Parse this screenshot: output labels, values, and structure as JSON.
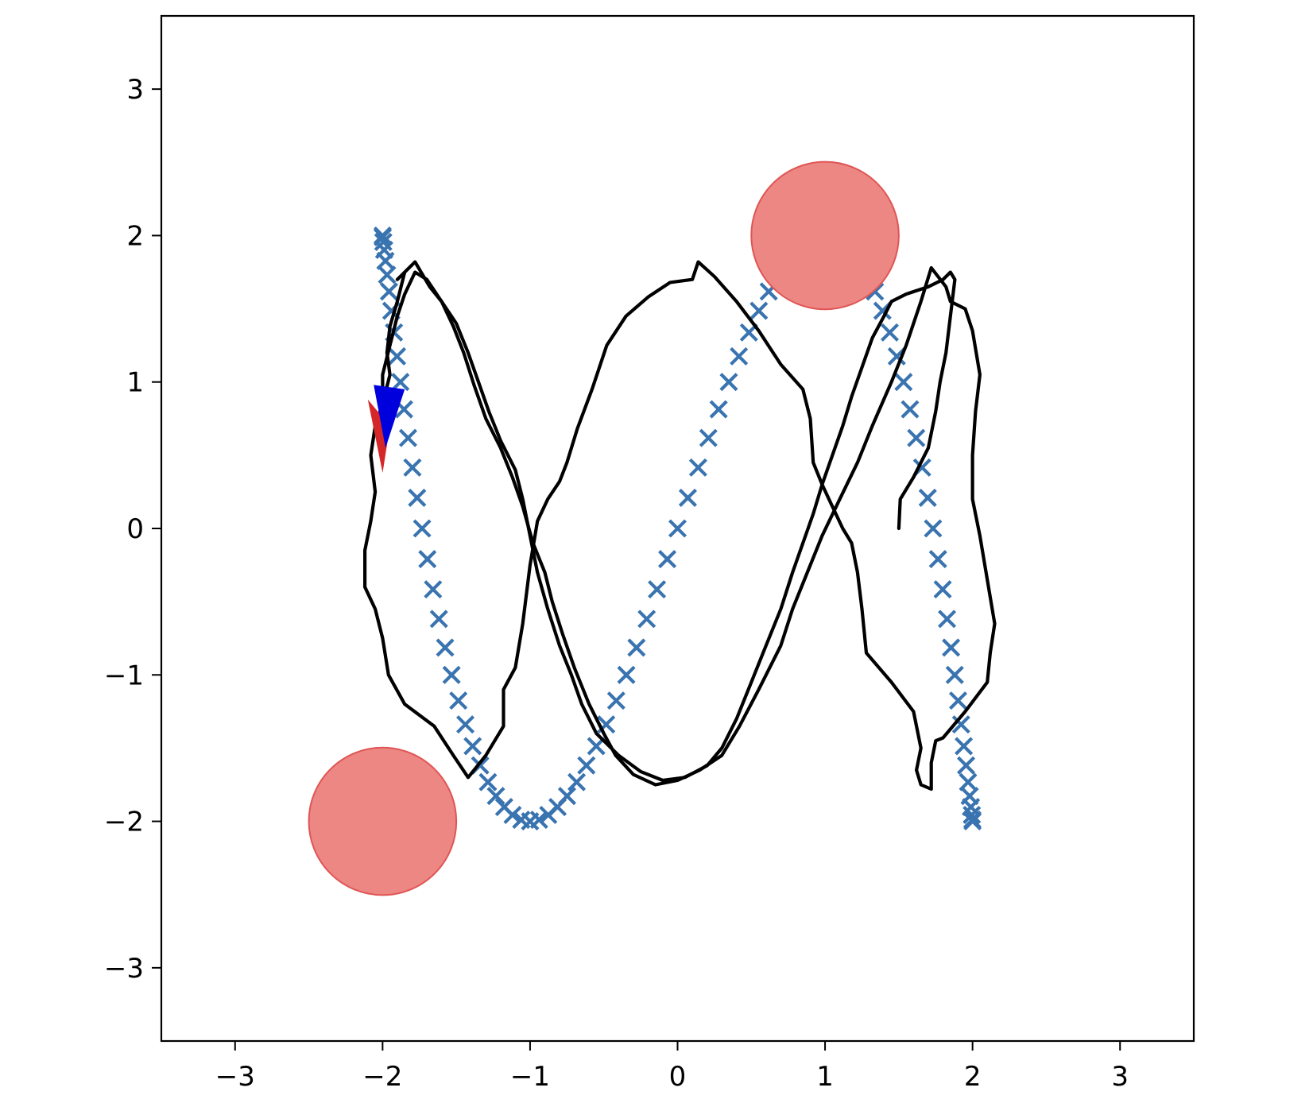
{
  "chart_data": {
    "type": "scatter",
    "title": "",
    "xlabel": "",
    "ylabel": "",
    "xlim": [
      -3.5,
      3.5
    ],
    "ylim": [
      -3.5,
      3.5
    ],
    "grid": false,
    "x_ticks": [
      -3,
      -2,
      -1,
      0,
      1,
      2,
      3
    ],
    "y_ticks": [
      -3,
      -2,
      -1,
      0,
      1,
      2,
      3
    ],
    "x_tick_labels": [
      "−3",
      "−2",
      "−1",
      "0",
      "1",
      "2",
      "3"
    ],
    "y_tick_labels": [
      "−3",
      "−2",
      "−1",
      "0",
      "1",
      "2",
      "3"
    ],
    "colors": {
      "reference": "#3a74b0",
      "trajectory": "#000000",
      "obstacle_fill": "#ec8783",
      "obstacle_edge": "#e05555",
      "agent_red": "#d62728",
      "agent_blue": "#0000dd"
    },
    "series": [
      {
        "kind": "reference_markers",
        "marker": "x",
        "description_of_shape": "lissajous",
        "points_param": {
          "count": 180,
          "x_amp": 2.0,
          "y_amp": 2.0,
          "x_freq": 1,
          "y_freq": 3
        }
      },
      {
        "kind": "trajectory",
        "points": [
          [
            1.5,
            0.0
          ],
          [
            1.51,
            0.2
          ],
          [
            1.6,
            0.35
          ],
          [
            1.7,
            0.55
          ],
          [
            1.75,
            0.8
          ],
          [
            1.78,
            1.0
          ],
          [
            1.82,
            1.2
          ],
          [
            1.85,
            1.45
          ],
          [
            1.88,
            1.7
          ],
          [
            1.85,
            1.75
          ],
          [
            1.8,
            1.7
          ],
          [
            1.7,
            1.65
          ],
          [
            1.55,
            1.6
          ],
          [
            1.45,
            1.55
          ],
          [
            1.4,
            1.45
          ],
          [
            1.32,
            1.3
          ],
          [
            1.25,
            1.1
          ],
          [
            1.18,
            0.9
          ],
          [
            1.12,
            0.7
          ],
          [
            1.05,
            0.5
          ],
          [
            0.98,
            0.3
          ],
          [
            0.92,
            0.1
          ],
          [
            0.85,
            -0.1
          ],
          [
            0.78,
            -0.3
          ],
          [
            0.7,
            -0.55
          ],
          [
            0.6,
            -0.8
          ],
          [
            0.5,
            -1.05
          ],
          [
            0.4,
            -1.3
          ],
          [
            0.3,
            -1.5
          ],
          [
            0.2,
            -1.62
          ],
          [
            0.05,
            -1.7
          ],
          [
            -0.1,
            -1.72
          ],
          [
            -0.25,
            -1.66
          ],
          [
            -0.4,
            -1.55
          ],
          [
            -0.55,
            -1.4
          ],
          [
            -0.65,
            -1.2
          ],
          [
            -0.72,
            -1.0
          ],
          [
            -0.8,
            -0.8
          ],
          [
            -0.88,
            -0.55
          ],
          [
            -0.95,
            -0.3
          ],
          [
            -1.0,
            -0.05
          ],
          [
            -1.05,
            0.2
          ],
          [
            -1.1,
            0.4
          ],
          [
            -1.2,
            0.6
          ],
          [
            -1.28,
            0.8
          ],
          [
            -1.35,
            1.0
          ],
          [
            -1.42,
            1.2
          ],
          [
            -1.5,
            1.4
          ],
          [
            -1.6,
            1.55
          ],
          [
            -1.7,
            1.7
          ],
          [
            -1.78,
            1.75
          ],
          [
            -1.85,
            1.6
          ],
          [
            -1.9,
            1.45
          ],
          [
            -1.95,
            1.25
          ],
          [
            -2.0,
            1.05
          ],
          [
            -2.0,
            0.88
          ]
        ]
      },
      {
        "kind": "trajectory",
        "points": [
          [
            -1.85,
            1.75
          ],
          [
            -1.9,
            1.55
          ],
          [
            -1.95,
            1.38
          ],
          [
            -1.97,
            1.2
          ],
          [
            -1.95,
            1.05
          ],
          [
            -2.0,
            0.85
          ],
          [
            -2.05,
            0.7
          ],
          [
            -2.08,
            0.5
          ],
          [
            -2.05,
            0.25
          ],
          [
            -2.08,
            0.05
          ],
          [
            -2.12,
            -0.15
          ],
          [
            -2.12,
            -0.4
          ],
          [
            -2.05,
            -0.55
          ],
          [
            -2.0,
            -0.75
          ],
          [
            -1.96,
            -1.0
          ],
          [
            -1.85,
            -1.2
          ],
          [
            -1.65,
            -1.35
          ],
          [
            -1.52,
            -1.55
          ],
          [
            -1.42,
            -1.7
          ],
          [
            -1.3,
            -1.55
          ],
          [
            -1.18,
            -1.35
          ],
          [
            -1.18,
            -1.1
          ],
          [
            -1.1,
            -0.95
          ],
          [
            -1.05,
            -0.65
          ],
          [
            -1.0,
            -0.25
          ],
          [
            -0.95,
            0.05
          ],
          [
            -0.88,
            0.2
          ],
          [
            -0.8,
            0.32
          ],
          [
            -0.75,
            0.45
          ],
          [
            -0.68,
            0.68
          ],
          [
            -0.58,
            0.95
          ],
          [
            -0.48,
            1.25
          ],
          [
            -0.35,
            1.45
          ],
          [
            -0.2,
            1.58
          ],
          [
            -0.05,
            1.68
          ],
          [
            0.1,
            1.7
          ],
          [
            0.14,
            1.82
          ],
          [
            0.25,
            1.72
          ],
          [
            0.4,
            1.55
          ],
          [
            0.55,
            1.35
          ],
          [
            0.7,
            1.12
          ],
          [
            0.85,
            0.95
          ],
          [
            0.9,
            0.75
          ],
          [
            0.92,
            0.45
          ],
          [
            0.98,
            0.3
          ],
          [
            1.05,
            0.15
          ],
          [
            1.12,
            0.0
          ],
          [
            1.18,
            -0.1
          ],
          [
            1.22,
            -0.3
          ],
          [
            1.25,
            -0.55
          ],
          [
            1.28,
            -0.85
          ],
          [
            1.45,
            -1.05
          ],
          [
            1.6,
            -1.25
          ],
          [
            1.65,
            -1.5
          ],
          [
            1.62,
            -1.65
          ],
          [
            1.65,
            -1.75
          ],
          [
            1.72,
            -1.78
          ],
          [
            1.72,
            -1.6
          ],
          [
            1.75,
            -1.45
          ],
          [
            1.8,
            -1.43
          ],
          [
            1.95,
            -1.25
          ],
          [
            2.1,
            -1.05
          ],
          [
            2.12,
            -0.85
          ],
          [
            2.15,
            -0.65
          ],
          [
            2.1,
            -0.35
          ],
          [
            2.05,
            -0.05
          ],
          [
            2.0,
            0.2
          ],
          [
            2.0,
            0.5
          ],
          [
            2.02,
            0.8
          ],
          [
            2.05,
            1.05
          ],
          [
            2.0,
            1.35
          ],
          [
            1.95,
            1.5
          ],
          [
            1.85,
            1.55
          ],
          [
            1.82,
            1.65
          ],
          [
            1.72,
            1.78
          ],
          [
            1.65,
            1.55
          ],
          [
            1.55,
            1.25
          ],
          [
            1.45,
            1.0
          ],
          [
            1.32,
            0.7
          ],
          [
            1.22,
            0.45
          ],
          [
            1.1,
            0.2
          ],
          [
            0.98,
            -0.05
          ],
          [
            0.88,
            -0.3
          ],
          [
            0.78,
            -0.55
          ],
          [
            0.7,
            -0.8
          ],
          [
            0.55,
            -1.1
          ],
          [
            0.42,
            -1.35
          ],
          [
            0.3,
            -1.55
          ],
          [
            0.15,
            -1.65
          ],
          [
            0.0,
            -1.72
          ],
          [
            -0.15,
            -1.75
          ],
          [
            -0.3,
            -1.68
          ],
          [
            -0.42,
            -1.55
          ],
          [
            -0.5,
            -1.4
          ],
          [
            -0.6,
            -1.2
          ],
          [
            -0.7,
            -0.95
          ],
          [
            -0.78,
            -0.72
          ],
          [
            -0.85,
            -0.5
          ],
          [
            -0.9,
            -0.3
          ],
          [
            -0.98,
            -0.1
          ],
          [
            -1.05,
            0.15
          ],
          [
            -1.12,
            0.35
          ],
          [
            -1.2,
            0.55
          ],
          [
            -1.3,
            0.75
          ],
          [
            -1.38,
            0.98
          ],
          [
            -1.45,
            1.2
          ],
          [
            -1.52,
            1.38
          ],
          [
            -1.6,
            1.55
          ],
          [
            -1.68,
            1.65
          ],
          [
            -1.78,
            1.82
          ],
          [
            -1.9,
            1.7
          ]
        ]
      }
    ],
    "obstacles": [
      {
        "x": 1.0,
        "y": 2.0,
        "r": 0.5
      },
      {
        "x": -2.0,
        "y": -2.0,
        "r": 0.5
      }
    ],
    "agents": [
      {
        "color": "red",
        "points": [
          [
            -2.1,
            0.88
          ],
          [
            -2.0,
            0.38
          ],
          [
            -1.95,
            0.7
          ]
        ]
      },
      {
        "color": "blue",
        "points": [
          [
            -2.06,
            0.98
          ],
          [
            -1.85,
            0.95
          ],
          [
            -1.98,
            0.55
          ]
        ]
      }
    ]
  }
}
